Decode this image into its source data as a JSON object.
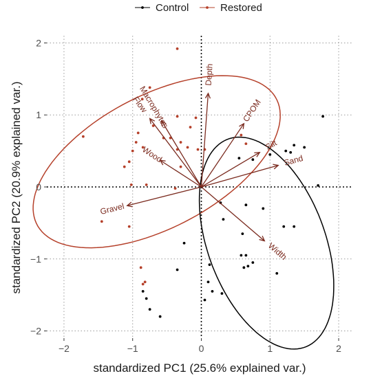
{
  "chart_data": {
    "type": "scatter",
    "xlabel": "standardized PC1 (25.6% explained var.)",
    "ylabel": "standardized PC2 (20.9% explained var.)",
    "xlim": [
      -2.25,
      2.2
    ],
    "ylim": [
      -2.1,
      2.1
    ],
    "x_ticks": [
      -2,
      -1,
      0,
      1,
      2
    ],
    "y_ticks": [
      -2,
      -1,
      0,
      1,
      2
    ],
    "x_tick_labels": [
      "−2",
      "−1",
      "0",
      "1",
      "2"
    ],
    "y_tick_labels": [
      "−2",
      "−1",
      "0",
      "1",
      "2"
    ],
    "grid": "dotted",
    "legend_position": "top",
    "series": [
      {
        "name": "Control",
        "color": "#000000",
        "points": [
          [
            1.77,
            0.98
          ],
          [
            1.7,
            0.02
          ],
          [
            1.5,
            0.55
          ],
          [
            1.35,
            0.58
          ],
          [
            1.3,
            0.48
          ],
          [
            1.23,
            0.5
          ],
          [
            1.0,
            0.45
          ],
          [
            0.75,
            0.38
          ],
          [
            0.55,
            0.4
          ],
          [
            0.65,
            -0.25
          ],
          [
            0.9,
            -0.3
          ],
          [
            1.35,
            -0.55
          ],
          [
            1.2,
            -0.55
          ],
          [
            0.32,
            -0.45
          ],
          [
            0.28,
            -0.22
          ],
          [
            0.6,
            -0.65
          ],
          [
            0.58,
            -0.95
          ],
          [
            0.75,
            -1.05
          ],
          [
            0.65,
            -0.95
          ],
          [
            0.68,
            -1.1
          ],
          [
            0.62,
            -1.12
          ],
          [
            1.1,
            -1.2
          ],
          [
            0.12,
            -1.08
          ],
          [
            0.1,
            -1.32
          ],
          [
            0.05,
            -1.57
          ],
          [
            0.16,
            -1.45
          ],
          [
            0.3,
            -1.48
          ],
          [
            -0.25,
            -0.78
          ],
          [
            -0.35,
            -1.15
          ],
          [
            -0.6,
            -1.8
          ],
          [
            -0.75,
            -1.7
          ],
          [
            -0.8,
            -1.55
          ],
          [
            -0.85,
            -1.45
          ]
        ]
      },
      {
        "name": "Restored",
        "color": "#b5402a",
        "points": [
          [
            -1.72,
            0.7
          ],
          [
            -1.45,
            -0.48
          ],
          [
            -1.05,
            -0.55
          ],
          [
            -1.12,
            0.28
          ],
          [
            -1.05,
            0.35
          ],
          [
            -1.0,
            0.5
          ],
          [
            -1.02,
            0.03
          ],
          [
            -0.95,
            0.62
          ],
          [
            -0.92,
            0.75
          ],
          [
            -0.86,
            1.22
          ],
          [
            -0.75,
            1.38
          ],
          [
            -0.7,
            0.85
          ],
          [
            -0.8,
            0.03
          ],
          [
            -0.85,
            0.55
          ],
          [
            -0.55,
            0.68
          ],
          [
            -0.45,
            0.68
          ],
          [
            -0.35,
            0.98
          ],
          [
            -0.35,
            1.92
          ],
          [
            -0.3,
            0.62
          ],
          [
            -0.2,
            0.55
          ],
          [
            -0.16,
            0.83
          ],
          [
            -0.08,
            0.96
          ],
          [
            -0.05,
            0.52
          ],
          [
            0.05,
            0.52
          ],
          [
            -0.3,
            0.28
          ],
          [
            -0.35,
            0.52
          ],
          [
            -0.38,
            -0.02
          ],
          [
            0.65,
            0.6
          ],
          [
            0.58,
            0.72
          ],
          [
            -0.88,
            -1.12
          ],
          [
            -0.85,
            -1.35
          ],
          [
            -0.82,
            -1.32
          ]
        ]
      }
    ],
    "loadings": [
      {
        "name": "Depth",
        "x": 0.1,
        "y": 1.3
      },
      {
        "name": "CPOM",
        "x": 0.62,
        "y": 0.88
      },
      {
        "name": "Macrophytes",
        "x": -0.58,
        "y": 0.92
      },
      {
        "name": "Flow",
        "x": -0.75,
        "y": 0.95
      },
      {
        "name": "Wood",
        "x": -0.6,
        "y": 0.37
      },
      {
        "name": "Silt",
        "x": 0.85,
        "y": 0.48
      },
      {
        "name": "Sand",
        "x": 1.12,
        "y": 0.3
      },
      {
        "name": "Gravel",
        "x": -1.08,
        "y": -0.26
      },
      {
        "name": "Width",
        "x": 0.92,
        "y": -0.75
      }
    ],
    "ellipses": [
      {
        "group": "Restored",
        "cx": -0.65,
        "cy": 0.35,
        "rx": 1.95,
        "ry": 0.93,
        "angle_deg": 26
      },
      {
        "group": "Control",
        "cx": 0.95,
        "cy": -0.78,
        "rx": 1.55,
        "ry": 0.85,
        "angle_deg": 112
      }
    ]
  }
}
